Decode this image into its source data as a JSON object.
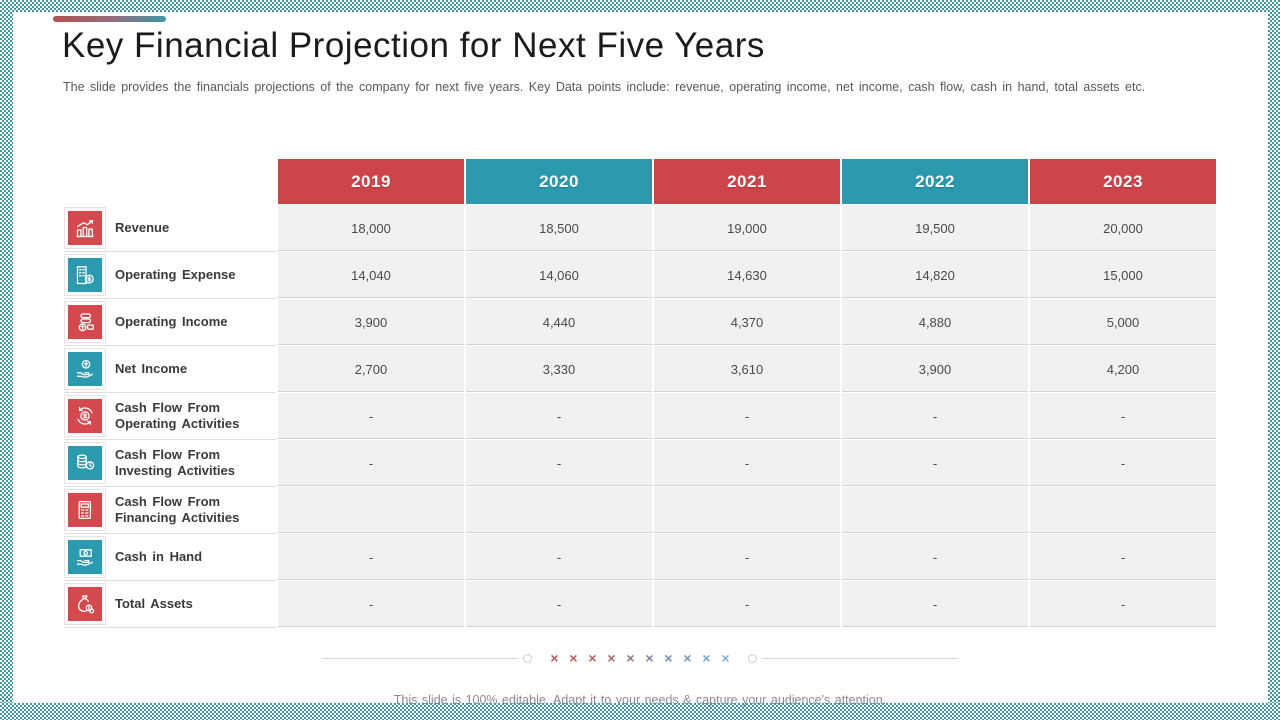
{
  "slide": {
    "title": "Key Financial Projection for Next Five Years",
    "subtitle": "The slide provides  the financials  projections  of the company  for next  five  years.  Key Data points  include:  revenue,   operating  income, net income,  cash flow,  cash in hand,  total assets  etc.",
    "footer": "This slide is 100% editable. Adapt it to your needs & capture your audience's attention."
  },
  "colors": {
    "header_red": "#ce4549",
    "header_teal": "#2b9aaf",
    "icon_red": "#d4494e",
    "icon_teal": "#2b9aaf",
    "checker_teal": "#3e97a6",
    "cell_bg": "#f1f1f2"
  },
  "chart_data": {
    "type": "table",
    "title": "Key Financial Projection for Next Five Years",
    "columns": [
      "2019",
      "2020",
      "2021",
      "2022",
      "2023"
    ],
    "header_styles": [
      "red",
      "teal",
      "red",
      "teal",
      "red"
    ],
    "rows": [
      {
        "label": "Revenue",
        "icon": "revenue-growth-chart-icon",
        "icon_color": "red",
        "values": [
          "18,000",
          "18,500",
          "19,000",
          "19,500",
          "20,000"
        ]
      },
      {
        "label": "Operating Expense",
        "icon": "expense-building-coin-icon",
        "icon_color": "teal",
        "values": [
          "14,040",
          "14,060",
          "14,630",
          "14,820",
          "15,000"
        ]
      },
      {
        "label": "Operating Income",
        "icon": "income-cash-coins-icon",
        "icon_color": "red",
        "values": [
          "3,900",
          "4,440",
          "4,370",
          "4,880",
          "5,000"
        ]
      },
      {
        "label": "Net Income",
        "icon": "coin-over-hand-icon",
        "icon_color": "teal",
        "values": [
          "2,700",
          "3,330",
          "3,610",
          "3,900",
          "4,200"
        ]
      },
      {
        "label": "Cash Flow From Operating Activities",
        "icon": "dollar-cycle-arrows-icon",
        "icon_color": "red",
        "values": [
          "-",
          "-",
          "-",
          "-",
          "-"
        ]
      },
      {
        "label": "Cash Flow From Investing Activities",
        "icon": "coin-stack-clock-icon",
        "icon_color": "teal",
        "values": [
          "-",
          "-",
          "-",
          "-",
          "-"
        ]
      },
      {
        "label": "Cash Flow From Financing Activities",
        "icon": "finance-document-icon",
        "icon_color": "red",
        "values": [
          "",
          "",
          "",
          "",
          ""
        ]
      },
      {
        "label": "Cash in Hand",
        "icon": "cash-in-hand-icon",
        "icon_color": "teal",
        "values": [
          "-",
          "-",
          "-",
          "-",
          "-"
        ]
      },
      {
        "label": "Total Assets",
        "icon": "money-bag-coins-icon",
        "icon_color": "red",
        "values": [
          "-",
          "-",
          "-",
          "-",
          "-"
        ]
      }
    ]
  },
  "decoration": {
    "x_colors": [
      "#bb5956",
      "#bb5956",
      "#b16063",
      "#a56a74",
      "#967487",
      "#887e9a",
      "#7d8cad",
      "#7899bd",
      "#7aa5cc",
      "#81afd7"
    ],
    "x_glyph": "×"
  }
}
